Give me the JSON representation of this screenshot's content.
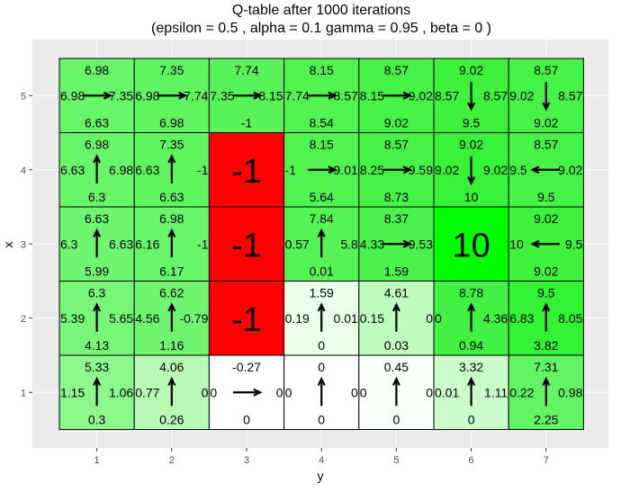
{
  "chart_data": {
    "type": "heatmap",
    "title_line1": "Q-table after  1000  iterations",
    "title_line2": "(epsilon =  0.5 , alpha =  0.1 gamma =  0.95 , beta =  0 )",
    "xlabel": "y",
    "ylabel": "x",
    "x_ticks": [
      "1",
      "2",
      "3",
      "4",
      "5",
      "6",
      "7"
    ],
    "y_ticks": [
      "1",
      "2",
      "3",
      "4",
      "5"
    ],
    "colors": {
      "panel": "#ebebeb",
      "grid": "#ffffff",
      "cell_border": "#000000",
      "wall": "#ff0000",
      "goal": "#00ff00",
      "low": "#ffffff",
      "high": "#00ff00"
    },
    "cells": [
      {
        "x": 5,
        "y": 1,
        "up": "6.98",
        "down": "6.63",
        "left": "6.98",
        "right": "7.35",
        "arrow": "right",
        "value": 6.98
      },
      {
        "x": 5,
        "y": 2,
        "up": "7.35",
        "down": "6.98",
        "left": "6.98",
        "right": "7.74",
        "arrow": "right",
        "value": 7.35
      },
      {
        "x": 5,
        "y": 3,
        "up": "7.74",
        "down": "-1",
        "left": "7.35",
        "right": "8.15",
        "arrow": "right",
        "value": 7.74
      },
      {
        "x": 5,
        "y": 4,
        "up": "8.15",
        "down": "8.54",
        "left": "7.74",
        "right": "8.57",
        "arrow": "right",
        "value": 8.15
      },
      {
        "x": 5,
        "y": 5,
        "up": "8.57",
        "down": "9.02",
        "left": "8.15",
        "right": "9.02",
        "arrow": "right",
        "value": 8.57
      },
      {
        "x": 5,
        "y": 6,
        "up": "9.02",
        "down": "9.5",
        "left": "8.57",
        "right": "8.57",
        "arrow": "down",
        "value": 9.02
      },
      {
        "x": 5,
        "y": 7,
        "up": "8.57",
        "down": "9.02",
        "left": "9.02",
        "right": "8.57",
        "arrow": "down",
        "value": 8.57
      },
      {
        "x": 4,
        "y": 1,
        "up": "6.98",
        "down": "6.3",
        "left": "6.63",
        "right": "6.98",
        "arrow": "up",
        "value": 6.98
      },
      {
        "x": 4,
        "y": 2,
        "up": "7.35",
        "down": "6.63",
        "left": "6.63",
        "right": "-1",
        "arrow": "up",
        "value": 7.35
      },
      {
        "x": 4,
        "y": 3,
        "special": "wall",
        "label": "-1"
      },
      {
        "x": 4,
        "y": 4,
        "up": "8.15",
        "down": "5.64",
        "left": "-1",
        "right": "9.01",
        "arrow": "right",
        "value": 8.15
      },
      {
        "x": 4,
        "y": 5,
        "up": "8.57",
        "down": "8.73",
        "left": "8.25",
        "right": "9.59",
        "arrow": "right",
        "value": 8.57
      },
      {
        "x": 4,
        "y": 6,
        "up": "9.02",
        "down": "10",
        "left": "9.02",
        "right": "9.02",
        "arrow": "down",
        "value": 9.25
      },
      {
        "x": 4,
        "y": 7,
        "up": "8.57",
        "down": "9.5",
        "left": "9.5",
        "right": "9.02",
        "arrow": "left",
        "value": 8.57
      },
      {
        "x": 3,
        "y": 1,
        "up": "6.63",
        "down": "5.99",
        "left": "6.3",
        "right": "6.63",
        "arrow": "up",
        "value": 6.63
      },
      {
        "x": 3,
        "y": 2,
        "up": "6.98",
        "down": "6.17",
        "left": "6.16",
        "right": "-1",
        "arrow": "up",
        "value": 6.98
      },
      {
        "x": 3,
        "y": 3,
        "special": "wall",
        "label": "-1"
      },
      {
        "x": 3,
        "y": 4,
        "up": "7.84",
        "down": "0.01",
        "left": "0.57",
        "right": "5.8",
        "arrow": "up",
        "value": 7.84
      },
      {
        "x": 3,
        "y": 5,
        "up": "8.37",
        "down": "1.59",
        "left": "4.33",
        "right": "9.53",
        "arrow": "right",
        "value": 8.37
      },
      {
        "x": 3,
        "y": 6,
        "special": "goal",
        "label": "10"
      },
      {
        "x": 3,
        "y": 7,
        "up": "9.02",
        "down": "9.02",
        "left": "10",
        "right": "9.5",
        "arrow": "left",
        "value": 9.02
      },
      {
        "x": 2,
        "y": 1,
        "up": "6.3",
        "down": "4.13",
        "left": "5.39",
        "right": "5.65",
        "arrow": "up",
        "value": 6.3
      },
      {
        "x": 2,
        "y": 2,
        "up": "6.62",
        "down": "1.16",
        "left": "4.56",
        "right": "-0.79",
        "arrow": "up",
        "value": 6.62
      },
      {
        "x": 2,
        "y": 3,
        "special": "wall",
        "label": "-1"
      },
      {
        "x": 2,
        "y": 4,
        "up": "1.59",
        "down": "0",
        "left": "0.19",
        "right": "0.01",
        "arrow": "up",
        "value": 1.0
      },
      {
        "x": 2,
        "y": 5,
        "up": "4.61",
        "down": "0.03",
        "left": "0.15",
        "right": "0",
        "arrow": "up",
        "value": 3.0
      },
      {
        "x": 2,
        "y": 6,
        "up": "8.78",
        "down": "0.94",
        "left": "0",
        "right": "4.36",
        "arrow": "up",
        "value": 8.78
      },
      {
        "x": 2,
        "y": 7,
        "up": "9.5",
        "down": "3.82",
        "left": "6.83",
        "right": "8.05",
        "arrow": "up",
        "value": 9.5
      },
      {
        "x": 1,
        "y": 1,
        "up": "5.33",
        "down": "0.3",
        "left": "1.15",
        "right": "1.06",
        "arrow": "up",
        "value": 5.33
      },
      {
        "x": 1,
        "y": 2,
        "up": "4.06",
        "down": "0.26",
        "left": "0.77",
        "right": "0",
        "arrow": "up",
        "value": 3.4
      },
      {
        "x": 1,
        "y": 3,
        "up": "-0.27",
        "down": "0",
        "left": "0",
        "right": "0",
        "arrow": "right",
        "value": 0
      },
      {
        "x": 1,
        "y": 4,
        "up": "0",
        "down": "0",
        "left": "0",
        "right": "0",
        "arrow": "up",
        "value": 0
      },
      {
        "x": 1,
        "y": 5,
        "up": "0.45",
        "down": "0",
        "left": "0",
        "right": "0",
        "arrow": "up",
        "value": 0.3
      },
      {
        "x": 1,
        "y": 6,
        "up": "3.32",
        "down": "0",
        "left": "0.01",
        "right": "1.11",
        "arrow": "up",
        "value": 2.4
      },
      {
        "x": 1,
        "y": 7,
        "up": "7.31",
        "down": "2.25",
        "left": "0.22",
        "right": "0.98",
        "arrow": "up",
        "value": 7.31
      }
    ]
  }
}
